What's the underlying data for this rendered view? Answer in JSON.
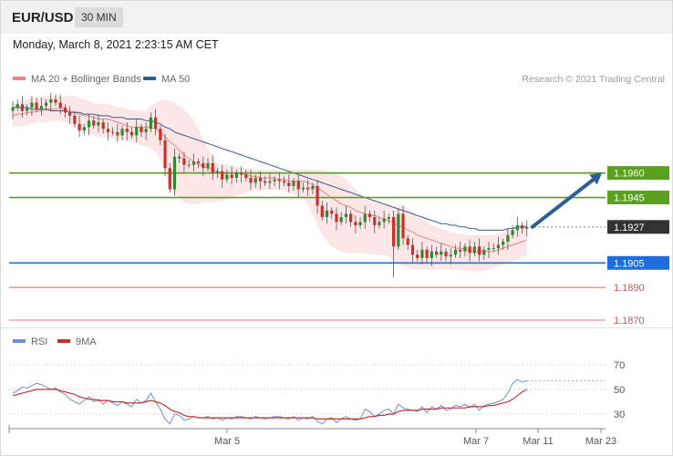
{
  "header": {
    "pair": "EUR/USD",
    "period": "30 MIN",
    "datetime": "Monday, March 8, 2021 2:23:15 AM CET"
  },
  "copyright": "Research © 2021 Trading Central",
  "colors": {
    "ma20": "#f08080",
    "band": "#fde2e2",
    "ma50": "#2e5f94",
    "resistance": "#5aa01e",
    "support": "#1e6ee0",
    "pivot_line": "#d9534f",
    "bull_candle": "#2f8a2f",
    "bear_candle": "#c9302c",
    "rsi": "#6f8fd6",
    "rsi_ma": "#c9302c",
    "arrow": "#2e5f94",
    "current_price": "#333333"
  },
  "chart_data": [
    {
      "type": "candlestick",
      "title": "EUR/USD",
      "legend": [
        {
          "name": "MA 20 + Bollinger Bands",
          "color": "#f08080"
        },
        {
          "name": "MA 50",
          "color": "#2e5f94"
        }
      ],
      "legend_position": "top-left",
      "ylim": [
        1.1865,
        1.201
      ],
      "x_ticks": [
        "Mar 5",
        "Mar 7",
        "Mar 11",
        "Mar 23"
      ],
      "price_levels": [
        {
          "label": "1.1960",
          "value": 1.196,
          "kind": "resistance"
        },
        {
          "label": "1.1945",
          "value": 1.1945,
          "kind": "resistance"
        },
        {
          "label": "1.1927",
          "value": 1.1927,
          "kind": "current"
        },
        {
          "label": "1.1905",
          "value": 1.1905,
          "kind": "support"
        },
        {
          "label": "1.1890",
          "value": 1.189,
          "kind": "support-secondary"
        },
        {
          "label": "1.1870",
          "value": 1.187,
          "kind": "support-secondary"
        }
      ],
      "close": [
        1.2,
        1.2002,
        1.1998,
        1.2,
        1.2003,
        1.1999,
        1.2001,
        1.2003,
        1.2005,
        1.2003,
        1.2,
        1.1997,
        1.1995,
        1.199,
        1.1986,
        1.1988,
        1.1992,
        1.1989,
        1.1991,
        1.1987,
        1.1985,
        1.1985,
        1.1983,
        1.1987,
        1.1985,
        1.1983,
        1.1988,
        1.1985,
        1.1987,
        1.1994,
        1.1987,
        1.198,
        1.1963,
        1.195,
        1.197,
        1.1969,
        1.1965,
        1.1965,
        1.1967,
        1.1966,
        1.1963,
        1.1966,
        1.196,
        1.1961,
        1.1956,
        1.1959,
        1.1957,
        1.196,
        1.1959,
        1.1957,
        1.1954,
        1.1957,
        1.1955,
        1.1954,
        1.1955,
        1.1956,
        1.1955,
        1.1954,
        1.1952,
        1.1955,
        1.195,
        1.1951,
        1.195,
        1.1952,
        1.194,
        1.1933,
        1.1937,
        1.1935,
        1.193,
        1.1933,
        1.1935,
        1.193,
        1.1928,
        1.193,
        1.1935,
        1.1933,
        1.1928,
        1.193,
        1.1932,
        1.1933,
        1.1915,
        1.1935,
        1.192,
        1.1916,
        1.191,
        1.1908,
        1.1913,
        1.1908,
        1.1912,
        1.191,
        1.1912,
        1.1909,
        1.191,
        1.1913,
        1.1912,
        1.1915,
        1.1911,
        1.1915,
        1.191,
        1.1913,
        1.1914,
        1.1914,
        1.1916,
        1.1918,
        1.1922,
        1.1925,
        1.1928,
        1.1926,
        1.1927
      ],
      "ma20": [
        1.1995,
        1.1996,
        1.1996,
        1.1997,
        1.1997,
        1.1998,
        1.1998,
        1.1999,
        1.1999,
        1.1999,
        1.2,
        1.1999,
        1.1998,
        1.1997,
        1.1996,
        1.1995,
        1.1995,
        1.1994,
        1.1993,
        1.1993,
        1.1993,
        1.1992,
        1.1991,
        1.199,
        1.1989,
        1.1988,
        1.1988,
        1.1988,
        1.1988,
        1.1988,
        1.1987,
        1.1985,
        1.1982,
        1.1979,
        1.1977,
        1.1974,
        1.1971,
        1.1969,
        1.1967,
        1.1965,
        1.1964,
        1.1963,
        1.1962,
        1.1961,
        1.196,
        1.196,
        1.196,
        1.196,
        1.196,
        1.1959,
        1.1958,
        1.1958,
        1.1957,
        1.1957,
        1.1957,
        1.1957,
        1.1956,
        1.1956,
        1.1955,
        1.1955,
        1.1955,
        1.1955,
        1.1954,
        1.1953,
        1.1951,
        1.1949,
        1.1947,
        1.1945,
        1.1943,
        1.1941,
        1.194,
        1.1939,
        1.1937,
        1.1936,
        1.1935,
        1.1934,
        1.1934,
        1.1933,
        1.1932,
        1.1931,
        1.1929,
        1.1928,
        1.1927,
        1.1925,
        1.1924,
        1.1922,
        1.1921,
        1.192,
        1.1919,
        1.1918,
        1.1917,
        1.1916,
        1.1915,
        1.1914,
        1.1914,
        1.1913,
        1.1913,
        1.1912,
        1.1912,
        1.1912,
        1.1912,
        1.1912,
        1.1913,
        1.1914,
        1.1915,
        1.1916,
        1.1917,
        1.1918,
        1.1919
      ],
      "bb_upper": [
        1.2002,
        1.2003,
        1.2004,
        1.2005,
        1.2006,
        1.2006,
        1.2007,
        1.2007,
        1.2007,
        1.2007,
        1.2007,
        1.2007,
        1.2007,
        1.2007,
        1.2006,
        1.2005,
        1.2004,
        1.2003,
        1.2002,
        1.2002,
        1.2002,
        1.2001,
        1.2,
        1.2,
        1.1999,
        1.1999,
        1.1998,
        1.1998,
        1.1998,
        1.2001,
        1.2003,
        1.2004,
        1.2005,
        1.2004,
        1.2003,
        1.2001,
        1.1999,
        1.1996,
        1.1992,
        1.1987,
        1.1981,
        1.1975,
        1.197,
        1.1966,
        1.1965,
        1.1965,
        1.1964,
        1.1964,
        1.1963,
        1.1963,
        1.1963,
        1.1962,
        1.1962,
        1.1962,
        1.1962,
        1.1962,
        1.1961,
        1.1961,
        1.1961,
        1.1962,
        1.1962,
        1.1962,
        1.1962,
        1.1962,
        1.1962,
        1.1962,
        1.1961,
        1.1961,
        1.196,
        1.1958,
        1.1956,
        1.1953,
        1.195,
        1.1947,
        1.1945,
        1.1944,
        1.1943,
        1.1942,
        1.1941,
        1.194,
        1.194,
        1.194,
        1.194,
        1.1938,
        1.1936,
        1.1934,
        1.1932,
        1.193,
        1.1928,
        1.1927,
        1.1926,
        1.1925,
        1.1924,
        1.1923,
        1.1923,
        1.1922,
        1.1922,
        1.1922,
        1.1922,
        1.1922,
        1.1922,
        1.1922,
        1.1923,
        1.1924,
        1.1925,
        1.1926,
        1.1927,
        1.1928,
        1.1929
      ],
      "bb_lower": [
        1.1988,
        1.1989,
        1.1989,
        1.1989,
        1.199,
        1.1991,
        1.1991,
        1.1991,
        1.1992,
        1.1992,
        1.1992,
        1.1991,
        1.199,
        1.1988,
        1.1986,
        1.1985,
        1.1984,
        1.1983,
        1.1982,
        1.1982,
        1.1982,
        1.1981,
        1.198,
        1.198,
        1.1979,
        1.1979,
        1.1978,
        1.1977,
        1.1976,
        1.1975,
        1.1973,
        1.1968,
        1.196,
        1.1952,
        1.1948,
        1.1945,
        1.1942,
        1.1941,
        1.1941,
        1.1941,
        1.1942,
        1.1942,
        1.1942,
        1.1943,
        1.1943,
        1.1944,
        1.1945,
        1.1946,
        1.1947,
        1.1948,
        1.1949,
        1.1949,
        1.1949,
        1.195,
        1.195,
        1.195,
        1.195,
        1.1949,
        1.1948,
        1.1947,
        1.1946,
        1.1944,
        1.194,
        1.1935,
        1.1928,
        1.1922,
        1.1918,
        1.1915,
        1.1913,
        1.1912,
        1.1911,
        1.1911,
        1.1911,
        1.1911,
        1.1911,
        1.191,
        1.191,
        1.191,
        1.191,
        1.1909,
        1.1906,
        1.1904,
        1.1903,
        1.1902,
        1.1901,
        1.1901,
        1.1901,
        1.1901,
        1.1901,
        1.1901,
        1.1901,
        1.1901,
        1.1901,
        1.1901,
        1.1901,
        1.19,
        1.19,
        1.19,
        1.19,
        1.19,
        1.1901,
        1.1902,
        1.1903,
        1.1904,
        1.1905,
        1.1906,
        1.1907,
        1.1908,
        1.1909
      ],
      "ma50": [
        1.2,
        1.2,
        1.2,
        1.2,
        1.1999,
        1.1999,
        1.1999,
        1.1999,
        1.1998,
        1.1998,
        1.1998,
        1.1998,
        1.1997,
        1.1997,
        1.1997,
        1.1996,
        1.1996,
        1.1996,
        1.1995,
        1.1995,
        1.1995,
        1.1994,
        1.1994,
        1.1994,
        1.1993,
        1.1993,
        1.1993,
        1.1993,
        1.1992,
        1.1992,
        1.1991,
        1.199,
        1.1988,
        1.1987,
        1.1985,
        1.1984,
        1.1983,
        1.1982,
        1.1981,
        1.198,
        1.1979,
        1.1978,
        1.1977,
        1.1976,
        1.1975,
        1.1974,
        1.1973,
        1.1972,
        1.1971,
        1.197,
        1.1969,
        1.1968,
        1.1967,
        1.1966,
        1.1965,
        1.1964,
        1.1963,
        1.1962,
        1.1961,
        1.196,
        1.1959,
        1.1958,
        1.1957,
        1.1956,
        1.1955,
        1.1954,
        1.1953,
        1.1952,
        1.1951,
        1.195,
        1.1949,
        1.1948,
        1.1947,
        1.1946,
        1.1945,
        1.1944,
        1.1943,
        1.1942,
        1.1941,
        1.194,
        1.1939,
        1.1938,
        1.1937,
        1.1936,
        1.1935,
        1.1934,
        1.1933,
        1.1932,
        1.1931,
        1.193,
        1.1929,
        1.1929,
        1.1928,
        1.1928,
        1.1927,
        1.1927,
        1.1926,
        1.1926,
        1.1925,
        1.1925,
        1.1925,
        1.1925,
        1.1925,
        1.1925,
        1.1926,
        1.1926,
        1.1927,
        1.1927,
        1.1927
      ],
      "projection": {
        "from": 1.1927,
        "to": 1.196
      }
    },
    {
      "type": "line",
      "legend": [
        {
          "name": "RSI",
          "color": "#6f8fd6"
        },
        {
          "name": "9MA",
          "color": "#c9302c"
        }
      ],
      "ylim": [
        20,
        80
      ],
      "y_ticks": [
        70,
        50,
        30
      ],
      "rsi": [
        47,
        49,
        52,
        51,
        53,
        55,
        54,
        52,
        50,
        51,
        48,
        46,
        42,
        40,
        38,
        41,
        44,
        40,
        42,
        38,
        41,
        39,
        37,
        40,
        38,
        36,
        42,
        39,
        41,
        47,
        40,
        34,
        26,
        22,
        30,
        29,
        25,
        26,
        28,
        27,
        27,
        28,
        26,
        27,
        25,
        27,
        26,
        28,
        28,
        27,
        26,
        28,
        27,
        26,
        27,
        28,
        28,
        27,
        26,
        28,
        25,
        27,
        26,
        28,
        24,
        22,
        26,
        27,
        23,
        26,
        28,
        26,
        25,
        26,
        34,
        32,
        28,
        30,
        33,
        34,
        30,
        38,
        35,
        34,
        33,
        32,
        36,
        31,
        36,
        34,
        37,
        33,
        34,
        37,
        36,
        38,
        35,
        38,
        33,
        37,
        38,
        39,
        40,
        42,
        47,
        55,
        58,
        56,
        57
      ],
      "rsi_ma": [
        45,
        46,
        47,
        48,
        49,
        50,
        50,
        50,
        50,
        50,
        49,
        48,
        47,
        46,
        44,
        43,
        42,
        42,
        41,
        41,
        41,
        40,
        40,
        40,
        39,
        39,
        39,
        39,
        40,
        41,
        40,
        39,
        37,
        34,
        32,
        31,
        29,
        28,
        28,
        27,
        27,
        27,
        27,
        27,
        27,
        27,
        27,
        27,
        27,
        27,
        27,
        27,
        27,
        27,
        27,
        27,
        27,
        27,
        27,
        27,
        27,
        27,
        27,
        27,
        26,
        26,
        26,
        26,
        26,
        26,
        26,
        26,
        26,
        26,
        27,
        28,
        28,
        29,
        29,
        30,
        30,
        32,
        33,
        33,
        33,
        33,
        34,
        34,
        34,
        34,
        35,
        35,
        35,
        35,
        35,
        35,
        36,
        36,
        36,
        36,
        37,
        37,
        38,
        39,
        40,
        42,
        45,
        48,
        50
      ]
    }
  ]
}
